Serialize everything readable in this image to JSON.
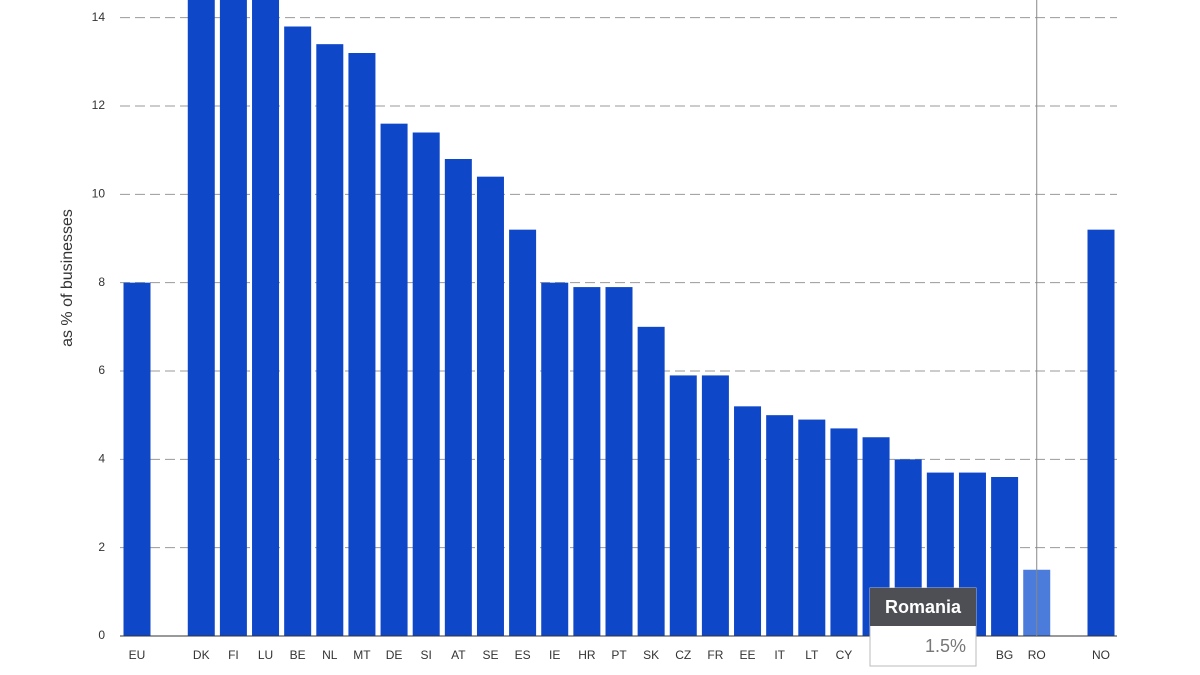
{
  "chart_data": {
    "type": "bar",
    "y_label": "as % of businesses",
    "categories": [
      "EU",
      null,
      "DK",
      "FI",
      "LU",
      "BE",
      "NL",
      "MT",
      "DE",
      "SI",
      "AT",
      "SE",
      "ES",
      "IE",
      "HR",
      "PT",
      "SK",
      "CZ",
      "FR",
      "EE",
      "IT",
      "LT",
      "CY",
      null,
      null,
      null,
      null,
      "BG",
      "RO",
      null,
      "NO"
    ],
    "values": [
      8.0,
      null,
      14.5,
      14.5,
      14.5,
      13.8,
      13.4,
      13.2,
      11.6,
      11.4,
      10.8,
      10.4,
      9.2,
      8.0,
      7.9,
      7.9,
      7.0,
      5.9,
      5.9,
      5.2,
      5.0,
      4.9,
      4.7,
      4.5,
      4.0,
      3.7,
      3.7,
      3.6,
      1.5,
      null,
      9.2
    ],
    "color": "#0f47c9",
    "highlight": "RO",
    "highlight_color": "#4b7bdb",
    "ylim": [
      0,
      14.4
    ],
    "yticks": [
      0,
      2,
      4,
      6,
      8,
      10,
      12,
      14
    ],
    "grid": true,
    "tooltip": {
      "title": "Romania",
      "label": "1.5%"
    }
  }
}
